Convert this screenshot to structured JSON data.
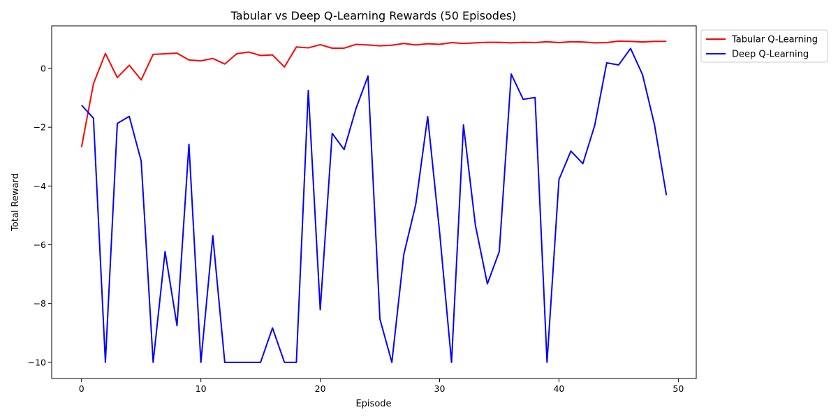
{
  "chart_data": {
    "type": "line",
    "title": "Tabular vs Deep Q-Learning Rewards (50 Episodes)",
    "xlabel": "Episode",
    "ylabel": "Total Reward",
    "xlim": [
      -2.5,
      51.5
    ],
    "ylim": [
      -10.55,
      1.45
    ],
    "xticks": [
      0,
      10,
      20,
      30,
      40,
      50
    ],
    "yticks": [
      0,
      -2,
      -4,
      -6,
      -8,
      -10
    ],
    "ytick_labels": [
      "0",
      "−2",
      "−4",
      "−6",
      "−8",
      "−10"
    ],
    "grid": false,
    "legend_position": "outside-top-right",
    "x": [
      0,
      1,
      2,
      3,
      4,
      5,
      6,
      7,
      8,
      9,
      10,
      11,
      12,
      13,
      14,
      15,
      16,
      17,
      18,
      19,
      20,
      21,
      22,
      23,
      24,
      25,
      26,
      27,
      28,
      29,
      30,
      31,
      32,
      33,
      34,
      35,
      36,
      37,
      38,
      39,
      40,
      41,
      42,
      43,
      44,
      45,
      46,
      47,
      48,
      49
    ],
    "series": [
      {
        "name": "Tabular Q-Learning",
        "color": "#ff0000",
        "values": [
          -2.68,
          -0.52,
          0.51,
          -0.31,
          0.11,
          -0.39,
          0.48,
          0.5,
          0.52,
          0.29,
          0.26,
          0.34,
          0.15,
          0.5,
          0.56,
          0.44,
          0.46,
          0.05,
          0.73,
          0.7,
          0.81,
          0.69,
          0.69,
          0.82,
          0.8,
          0.77,
          0.79,
          0.85,
          0.8,
          0.84,
          0.82,
          0.88,
          0.85,
          0.87,
          0.89,
          0.89,
          0.87,
          0.89,
          0.88,
          0.91,
          0.88,
          0.91,
          0.9,
          0.87,
          0.88,
          0.93,
          0.92,
          0.9,
          0.92,
          0.92
        ]
      },
      {
        "name": "Deep Q-Learning",
        "color": "#0000ff",
        "values": [
          -1.25,
          -1.69,
          -10.0,
          -1.87,
          -1.63,
          -3.15,
          -10.0,
          -6.23,
          -8.75,
          -2.58,
          -10.0,
          -5.69,
          -10.0,
          -10.0,
          -10.0,
          -10.0,
          -8.83,
          -10.0,
          -10.0,
          -0.75,
          -8.21,
          -2.21,
          -2.76,
          -1.36,
          -0.26,
          -8.53,
          -10.0,
          -6.33,
          -4.63,
          -1.64,
          -5.57,
          -10.0,
          -1.92,
          -5.34,
          -7.33,
          -6.23,
          -0.19,
          -1.05,
          -0.99,
          -10.0,
          -3.78,
          -2.81,
          -3.24,
          -1.93,
          0.19,
          0.12,
          0.68,
          -0.21,
          -1.91,
          -4.31
        ]
      }
    ]
  }
}
